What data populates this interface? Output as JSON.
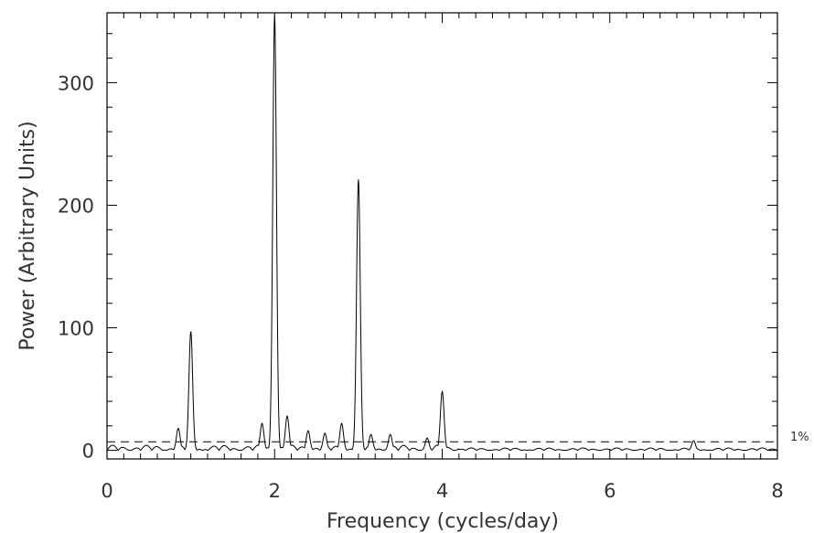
{
  "chart_data": {
    "type": "line",
    "xlabel": "Frequency (cycles/day)",
    "ylabel": "Power (Arbitrary Units)",
    "xlim": [
      0,
      8
    ],
    "ylim": [
      -7,
      357
    ],
    "xticks": [
      0,
      2,
      4,
      6,
      8
    ],
    "yticks": [
      0,
      100,
      200,
      300
    ],
    "x_minor_step": 0.2,
    "y_minor_step": 20,
    "grid": false,
    "threshold": {
      "label": "1%",
      "value": 7,
      "style": "dashed"
    },
    "series": [
      {
        "peaks": [
          {
            "x": 1.0,
            "y": 97
          },
          {
            "x": 2.0,
            "y": 355
          },
          {
            "x": 3.0,
            "y": 221
          },
          {
            "x": 4.0,
            "y": 48
          },
          {
            "x": 0.85,
            "y": 18
          },
          {
            "x": 1.85,
            "y": 22
          },
          {
            "x": 2.15,
            "y": 28
          },
          {
            "x": 2.4,
            "y": 16
          },
          {
            "x": 2.6,
            "y": 14
          },
          {
            "x": 2.8,
            "y": 22
          },
          {
            "x": 3.15,
            "y": 13
          },
          {
            "x": 3.38,
            "y": 13
          },
          {
            "x": 3.82,
            "y": 10
          },
          {
            "x": 7.0,
            "y": 8
          }
        ]
      }
    ]
  }
}
